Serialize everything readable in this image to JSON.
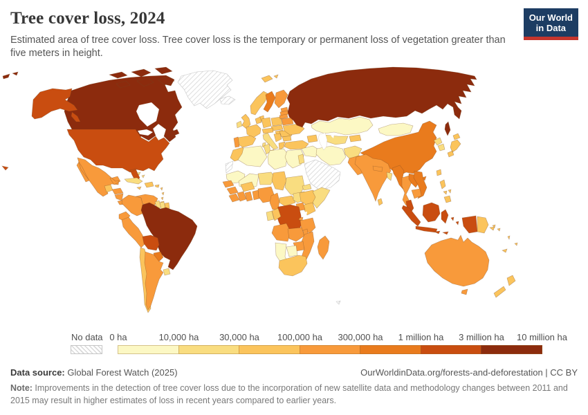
{
  "header": {
    "title": "Tree cover loss, 2024",
    "subtitle": "Estimated area of tree cover loss. Tree cover loss is the temporary or permanent loss of vegetation greater than five meters in height.",
    "logo": {
      "line1": "Our World",
      "line2": "in Data",
      "bg": "#1d3d63",
      "accent": "#c5352d"
    }
  },
  "legend": {
    "no_data_label": "No data",
    "labels": [
      "0 ha",
      "10,000 ha",
      "30,000 ha",
      "100,000 ha",
      "300,000 ha",
      "1 million ha",
      "3 million ha",
      "10 million ha"
    ],
    "colors": [
      "#fcf8c4",
      "#f9dd80",
      "#fbc45c",
      "#f89a3b",
      "#e97b1d",
      "#c94d10",
      "#8c2b0d"
    ]
  },
  "footer": {
    "source_label": "Data source:",
    "source_value": " Global Forest Watch (2025)",
    "link": "OurWorldinData.org/forests-and-deforestation | CC BY",
    "note_label": "Note:",
    "note_text": " Improvements in the detection of tree cover loss due to the incorporation of new satellite data and methodology changes between 2011 and 2015 may result in higher estimates of loss in recent years compared to earlier years."
  },
  "chart_data": {
    "type": "choropleth_map",
    "title": "Tree cover loss, 2024",
    "unit": "hectares",
    "bin_boundaries": [
      "0 ha",
      "10,000 ha",
      "30,000 ha",
      "100,000 ha",
      "300,000 ha",
      "1 million ha",
      "3 million ha",
      "10 million ha"
    ],
    "bin_colors": [
      "#fcf8c4",
      "#f9dd80",
      "#fbc45c",
      "#f89a3b",
      "#e97b1d",
      "#c94d10",
      "#8c2b0d"
    ],
    "no_data": [
      "greenland",
      "iceland",
      "western_sahara",
      "saudi_arabia_peninsula",
      "kerguelen"
    ],
    "country_bins": {
      "greenland": "nd",
      "iceland": "nd",
      "western_sahara": "nd",
      "saudi_arabia_peninsula": "nd",
      "kerguelen": "nd",
      "canada": 7,
      "russia": 7,
      "brazil": 7,
      "usa": 6,
      "bolivia": 6,
      "drc": 6,
      "indonesia": 6,
      "malaysia": 6,
      "china": 5,
      "sweden": 5,
      "myanmar": 5,
      "laos": 5,
      "vietnam": 5,
      "paraguay": 5,
      "mexico": 4,
      "honduras": 4,
      "nicaragua": 4,
      "costa_rica": 4,
      "panama": 4,
      "colombia": 4,
      "venezuela": 4,
      "ecuador": 4,
      "peru": 4,
      "argentina": 4,
      "india": 4,
      "pakistan": 4,
      "nepal": 4,
      "finland": 4,
      "portugal": 4,
      "estonia": 4,
      "latvia": 4,
      "lithuania": 4,
      "belarus": 4,
      "thailand": 4,
      "cambodia": 4,
      "australia": 4,
      "madagascar": 4,
      "mozambique": 4,
      "angola": 4,
      "zambia": 4,
      "malawi": 4,
      "tanzania": 4,
      "zimbabwe": 4,
      "uganda": 4,
      "rwanda": 4,
      "senegal": 4,
      "guinea": 4,
      "liberia": 4,
      "ivory_coast": 4,
      "ghana": 4,
      "togo_benin": 4,
      "nigeria": 4,
      "cameroon": 4,
      "guatemala": 3,
      "jamaica": 3,
      "hispaniola": 3,
      "puerto_rico": 3,
      "lesser_antilles": 3,
      "trinidad": 3,
      "chile": 3,
      "french_guiana": 3,
      "uk": 3,
      "norway": 3,
      "denmark": 3,
      "benelux": 3,
      "france": 3,
      "spain": 3,
      "germany": 3,
      "poland": 3,
      "czech_slovakia": 3,
      "austria_switzerland": 3,
      "hungary": 3,
      "balkans": 3,
      "greece": 3,
      "bulgaria": 3,
      "romania": 3,
      "ukraine": 3,
      "turkey": 3,
      "caucasus": 3,
      "kyrgyzstan_tajikistan": 3,
      "morocco": 3,
      "burkina_faso": 3,
      "chad": 3,
      "congo": 3,
      "car": 3,
      "ethiopia": 3,
      "kenya": 3,
      "south_africa": 3,
      "sri_lanka": 3,
      "japan": 3,
      "taiwan": 3,
      "philippines": 3,
      "papua_new_guinea": 3,
      "new_zealand": 3,
      "fiji": 3,
      "new_caledonia": 3,
      "solomon_islands": 3,
      "vanuatu": 3,
      "svalbard": 3,
      "ireland": 2,
      "italy": 2,
      "cuba": 2,
      "bahamas": 2,
      "guyana": 2,
      "suriname": 2,
      "uruguay": 2,
      "tunisia": 2,
      "niger": 2,
      "sudan": 2,
      "south_sudan": 2,
      "eritrea": 2,
      "somalia": 2,
      "gabon": 2,
      "uzbekistan_turkmenistan": 2,
      "afghanistan": 2,
      "bangladesh": 2,
      "north_korea": 2,
      "south_korea": 2,
      "israel_jordan": 2,
      "algeria": 1,
      "libya": 1,
      "egypt": 1,
      "mauritania": 1,
      "mali": 1,
      "namibia": 1,
      "botswana": 1,
      "kazakhstan": 1,
      "mongolia": 1,
      "iran": 1,
      "iraq_syria": 1
    }
  }
}
